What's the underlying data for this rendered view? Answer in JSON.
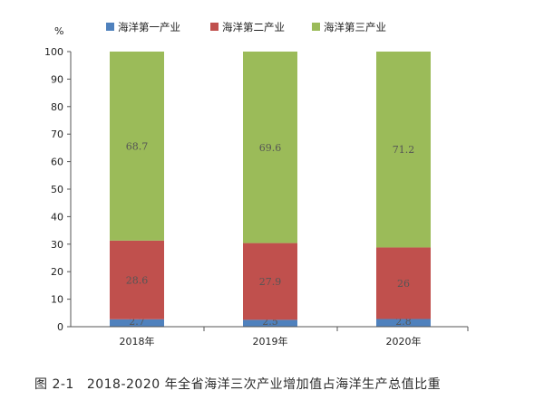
{
  "chart_data": {
    "type": "bar",
    "stacked": true,
    "unit_label": "%",
    "categories": [
      "2018年",
      "2019年",
      "2020年"
    ],
    "series": [
      {
        "name": "海洋第一产业",
        "color": "#4f81bd",
        "values": [
          2.7,
          2.5,
          2.8
        ],
        "labels": [
          "2.7",
          "2.5",
          "2.8"
        ]
      },
      {
        "name": "海洋第二产业",
        "color": "#c0504d",
        "values": [
          28.6,
          27.9,
          26.0
        ],
        "labels": [
          "28.6",
          "27.9",
          "26"
        ]
      },
      {
        "name": "海洋第三产业",
        "color": "#9bbb59",
        "values": [
          68.7,
          69.6,
          71.2
        ],
        "labels": [
          "68.7",
          "69.6",
          "71.2"
        ]
      }
    ],
    "ylim": [
      0,
      100
    ],
    "yticks": [
      0,
      10,
      20,
      30,
      40,
      50,
      60,
      70,
      80,
      90,
      100
    ],
    "legend_position": "top",
    "grid": false
  },
  "caption": {
    "number": "图 2-1",
    "title": "2018-2020 年全省海洋三次产业增加值占海洋生产总值比重"
  }
}
